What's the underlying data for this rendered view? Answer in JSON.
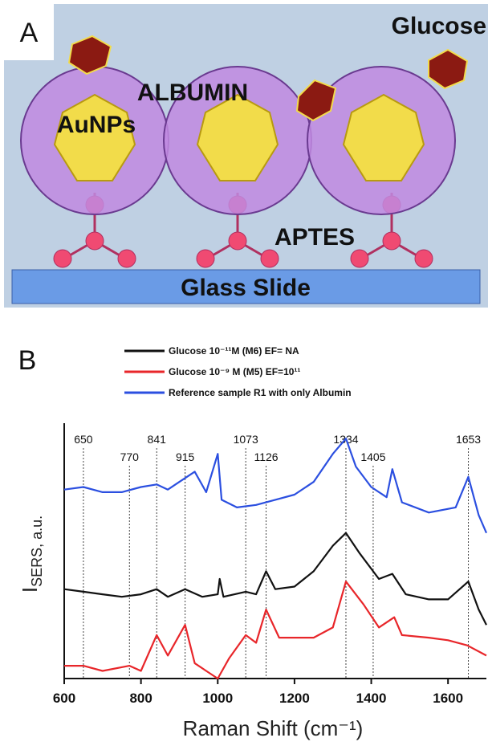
{
  "panel_a": {
    "label": "A",
    "glucose": "Glucose",
    "albumin": "ALBUMIN",
    "aunps": "AuNPs",
    "aptes": "APTES",
    "glass": "Glass Slide"
  },
  "chart_data": {
    "type": "line",
    "panel_label": "B",
    "xlabel": "Raman Shift (cm⁻¹)",
    "ylabel": [
      "I",
      "SERS, a.u."
    ],
    "xlim": [
      600,
      1700
    ],
    "xticks": [
      600,
      800,
      1000,
      1200,
      1400,
      1600
    ],
    "ylim": [
      0,
      100
    ],
    "peak_lines": [
      650,
      770,
      841,
      915,
      1073,
      1126,
      1334,
      1405,
      1653
    ],
    "series": [
      {
        "name": "Glucose 10⁻¹¹M (M6)  EF= NA",
        "color": "#111111",
        "x": [
          600,
          650,
          700,
          750,
          800,
          841,
          870,
          915,
          960,
          1000,
          1005,
          1015,
          1073,
          1100,
          1126,
          1150,
          1200,
          1250,
          1300,
          1334,
          1370,
          1420,
          1455,
          1490,
          1550,
          1600,
          1653,
          1680,
          1700
        ],
        "values": [
          35,
          34,
          33,
          32,
          33,
          35,
          32,
          35,
          32,
          33,
          39,
          32,
          34,
          33,
          42,
          35,
          36,
          42,
          52,
          57,
          49,
          39,
          41,
          33,
          31,
          31,
          38,
          27,
          21
        ]
      },
      {
        "name": "Glucose 10⁻⁹ M (M5) EF=10¹¹",
        "color": "#e8262a",
        "x": [
          600,
          650,
          700,
          770,
          800,
          841,
          870,
          915,
          940,
          970,
          1000,
          1030,
          1073,
          1100,
          1126,
          1160,
          1250,
          1300,
          1334,
          1380,
          1420,
          1460,
          1480,
          1550,
          1600,
          1650,
          1700
        ],
        "values": [
          5,
          5,
          3,
          5,
          3,
          17,
          9,
          21,
          6,
          3,
          0,
          8,
          17,
          14,
          27,
          16,
          16,
          20,
          38,
          29,
          20,
          24,
          17,
          16,
          15,
          13,
          9
        ]
      },
      {
        "name": "Reference sample R1 with only Albumin",
        "color": "#2b4fe0",
        "x": [
          600,
          650,
          700,
          750,
          800,
          841,
          870,
          900,
          940,
          970,
          1000,
          1010,
          1050,
          1100,
          1150,
          1200,
          1250,
          1300,
          1334,
          1360,
          1400,
          1440,
          1455,
          1480,
          1550,
          1620,
          1653,
          1680,
          1700
        ],
        "values": [
          74,
          75,
          73,
          73,
          75,
          76,
          74,
          77,
          81,
          73,
          88,
          70,
          67,
          68,
          70,
          72,
          77,
          88,
          94,
          83,
          75,
          71,
          82,
          69,
          65,
          67,
          79,
          64,
          57
        ]
      }
    ]
  }
}
